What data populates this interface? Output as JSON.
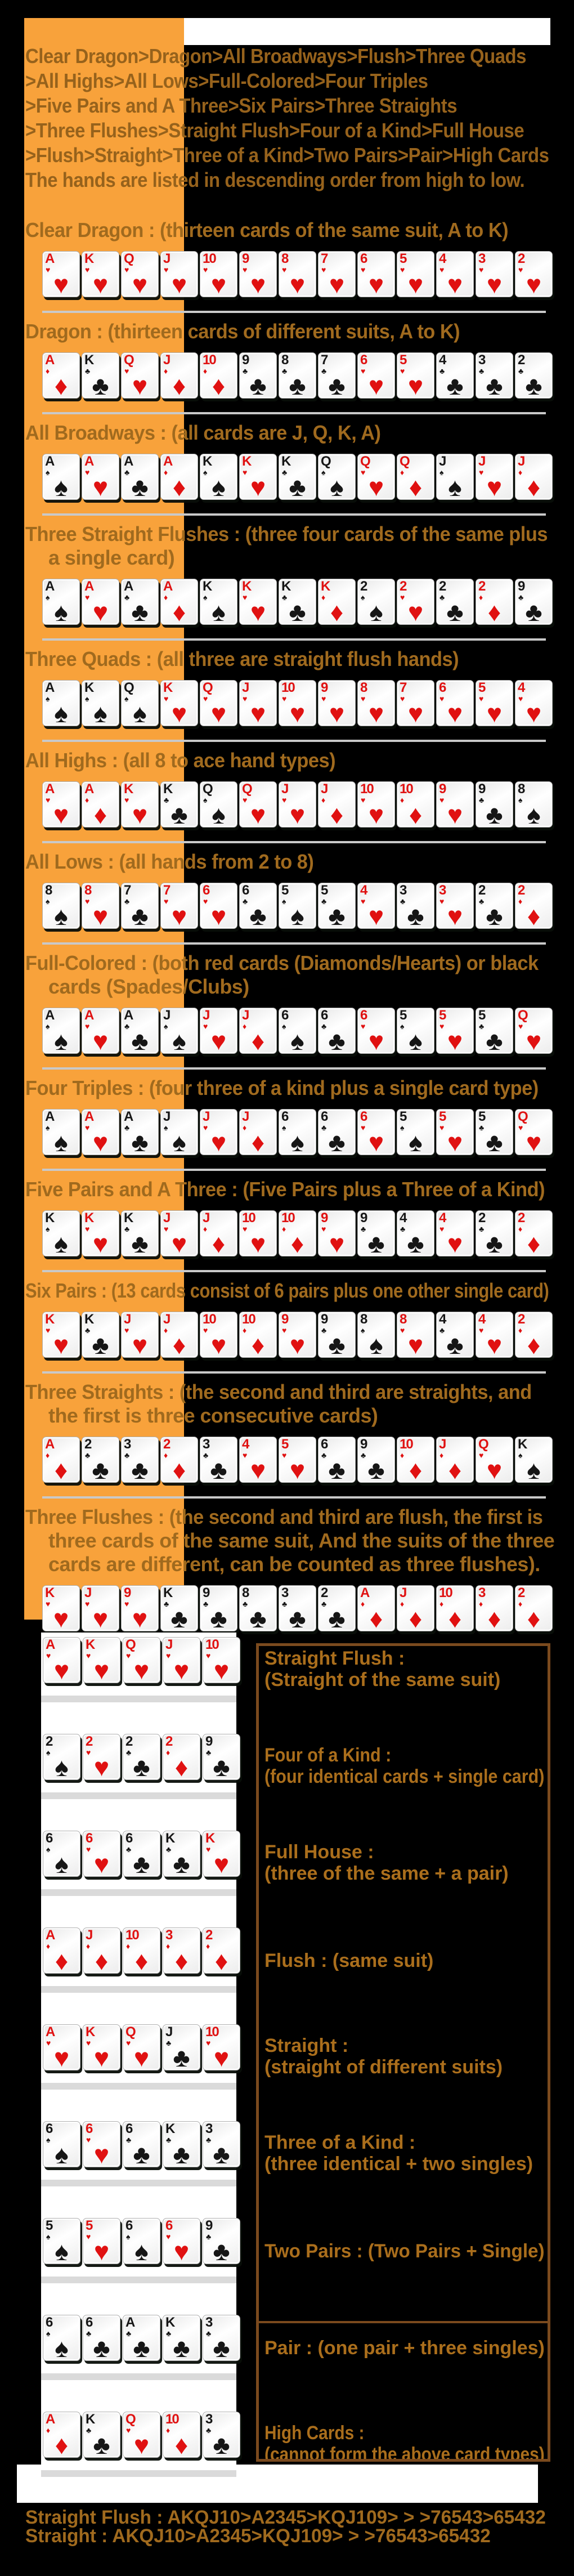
{
  "colors": {
    "background": "#000000",
    "sidebar_orange": "#F8A23B",
    "white_strip": "#FFFFFF",
    "text_brown": "#A06A1E",
    "divider_gray": "#C9C9C9",
    "box_border_brown": "#7B4A1E",
    "suit_red": "#E01111",
    "suit_black": "#161616"
  },
  "intro": {
    "lines": [
      "Clear Dragon>Dragon>All Broadways>Flush>Three Quads",
      ">All Highs>All Lows>Full-Colored>Four Triples",
      ">Five Pairs and A Three>Six Pairs>Three Straights",
      ">Three Flushes>Straight Flush>Four of a Kind>Full House",
      ">Flush>Straight>Three of a Kind>Two Pairs>Pair>High Cards",
      "The hands are listed in descending order from high to low."
    ]
  },
  "sections": [
    {
      "name": "clear-dragon",
      "header_lines": [
        "Clear Dragon : (thirteen cards of the same suit, A to K)"
      ],
      "cards": [
        "Ah",
        "Kh",
        "Qh",
        "Jh",
        "10h",
        "9h",
        "8h",
        "7h",
        "6h",
        "5h",
        "4h",
        "3h",
        "2h"
      ]
    },
    {
      "name": "dragon",
      "header_lines": [
        "Dragon : (thirteen cards of different suits, A to K)"
      ],
      "cards": [
        "Ad",
        "Kc",
        "Qh",
        "Jd",
        "10d",
        "9c",
        "8c",
        "7c",
        "6h",
        "5h",
        "4c",
        "3c",
        "2c"
      ]
    },
    {
      "name": "all-broadways",
      "header_lines": [
        "All Broadways : (all cards are J, Q, K, A)"
      ],
      "cards": [
        "As",
        "Ah",
        "Ac",
        "Ad",
        "Ks",
        "Kh",
        "Kc",
        "Qs",
        "Qh",
        "Qd",
        "Js",
        "Jh",
        "Jd"
      ]
    },
    {
      "name": "three-straight-flushes",
      "header_lines": [
        "Three Straight Flushes : (three four cards of the same plus",
        "a single card)"
      ],
      "cards": [
        "As",
        "Ah",
        "Ac",
        "Ad",
        "Ks",
        "Kh",
        "Kc",
        "Kd",
        "2s",
        "2h",
        "2c",
        "2d",
        "9c"
      ]
    },
    {
      "name": "three-quads",
      "header_lines": [
        "Three Quads : (all three are straight flush hands)"
      ],
      "cards": [
        "As",
        "Ks",
        "Qs",
        "Kh",
        "Qh",
        "Jh",
        "10h",
        "9h",
        "8h",
        "7h",
        "6h",
        "5h",
        "4h"
      ]
    },
    {
      "name": "all-highs",
      "header_lines": [
        "All Highs : (all 8 to ace hand types)"
      ],
      "cards": [
        "Ah",
        "Ad",
        "Kh",
        "Kc",
        "Qs",
        "Qh",
        "Jh",
        "Jd",
        "10h",
        "10d",
        "9h",
        "9c",
        "8s"
      ]
    },
    {
      "name": "all-lows",
      "header_lines": [
        "All Lows : (all hands from 2 to 8)"
      ],
      "cards": [
        "8s",
        "8h",
        "7c",
        "7h",
        "6h",
        "6c",
        "5s",
        "5c",
        "4h",
        "3c",
        "3h",
        "2c",
        "2d"
      ]
    },
    {
      "name": "full-colored",
      "header_lines": [
        "Full-Colored : (both red cards (Diamonds/Hearts) or black",
        "cards (Spades/Clubs)"
      ],
      "cards": [
        "As",
        "Ah",
        "Ac",
        "Js",
        "Jh",
        "Jd",
        "6s",
        "6c",
        "6h",
        "5s",
        "5h",
        "5c",
        "Qh"
      ]
    },
    {
      "name": "four-triples",
      "header_lines": [
        "Four Triples : (four three of a kind plus a single card type)"
      ],
      "cards": [
        "As",
        "Ah",
        "Ac",
        "Js",
        "Jh",
        "Jd",
        "6s",
        "6c",
        "6h",
        "5s",
        "5h",
        "5c",
        "Qh"
      ]
    },
    {
      "name": "five-pairs-and-a-three",
      "header_lines": [
        "Five Pairs and A Three : (Five Pairs plus a Three of a Kind)"
      ],
      "cards": [
        "Ks",
        "Kh",
        "Kc",
        "Jh",
        "Jd",
        "10h",
        "10d",
        "9h",
        "9c",
        "4c",
        "4h",
        "2c",
        "2d"
      ]
    },
    {
      "name": "six-pairs",
      "header_lines": [
        "Six Pairs : (13 cards consist of 6 pairs plus one other single card)"
      ],
      "cards": [
        "Kh",
        "Kc",
        "Jh",
        "Jd",
        "10h",
        "10d",
        "9h",
        "9c",
        "8s",
        "8h",
        "4c",
        "4h",
        "2d"
      ]
    },
    {
      "name": "three-straights",
      "header_lines": [
        "Three Straights : (the second and third are straights, and",
        "the first is three consecutive cards)"
      ],
      "cards": [
        "Ad",
        "2c",
        "3c",
        "2d",
        "3c",
        "4h",
        "5h",
        "6c",
        "9c",
        "10d",
        "Jd",
        "Qh",
        "Ks"
      ]
    },
    {
      "name": "three-flushes",
      "header_lines": [
        "Three Flushes : (the second and third are flush, the first is",
        "three cards of the same suit, And the suits of the three",
        "cards are different, can be counted as three flushes)."
      ],
      "cards": [
        "Kh",
        "Jh",
        "9h",
        "Kc",
        "9c",
        "8c",
        "3c",
        "2c",
        "Ad",
        "Jd",
        "10d",
        "3d",
        "2d"
      ]
    }
  ],
  "bottom": {
    "rows": [
      {
        "name": "straight-flush",
        "cards": [
          "Ah",
          "Kh",
          "Qh",
          "Jh",
          "10h"
        ],
        "label_lines": [
          "Straight Flush :",
          "(Straight of the same suit)"
        ]
      },
      {
        "name": "four-of-a-kind",
        "cards": [
          "2s",
          "2h",
          "2c",
          "2d",
          "9c"
        ],
        "label_lines": [
          "Four of a Kind :",
          "(four identical cards + single card)"
        ]
      },
      {
        "name": "full-house",
        "cards": [
          "6s",
          "6h",
          "6c",
          "Kc",
          "Kh"
        ],
        "label_lines": [
          "Full House :",
          "(three of the same + a pair)"
        ]
      },
      {
        "name": "flush",
        "cards": [
          "Ad",
          "Jd",
          "10d",
          "3d",
          "2d"
        ],
        "label_lines": [
          "Flush : (same suit)"
        ]
      },
      {
        "name": "straight",
        "cards": [
          "Ah",
          "Kh",
          "Qh",
          "Jc",
          "10h"
        ],
        "label_lines": [
          "Straight :",
          "(straight of different suits)"
        ]
      },
      {
        "name": "three-of-a-kind",
        "cards": [
          "6s",
          "6h",
          "6c",
          "Kc",
          "3c"
        ],
        "label_lines": [
          "Three of a Kind :",
          "(three identical + two singles)"
        ]
      },
      {
        "name": "two-pairs",
        "cards": [
          "5s",
          "5h",
          "6s",
          "6h",
          "9c"
        ],
        "label_lines": [
          "Two Pairs : (Two Pairs + Single)"
        ]
      },
      {
        "name": "pair",
        "cards": [
          "6s",
          "6c",
          "Ac",
          "Kc",
          "3c"
        ],
        "label_lines": [
          "Pair : (one pair + three singles)"
        ]
      },
      {
        "name": "high-cards",
        "cards": [
          "Ad",
          "Kc",
          "Qh",
          "10d",
          "3c"
        ],
        "label_lines": [
          "High Cards :",
          "(cannot form the above card types)"
        ]
      }
    ]
  },
  "footer": {
    "lines": [
      "Straight Flush : AKQJ10>A2345>KQJ109> > >76543>65432",
      "Straight : AKQJ10>A2345>KQJ109> > >76543>65432"
    ]
  }
}
